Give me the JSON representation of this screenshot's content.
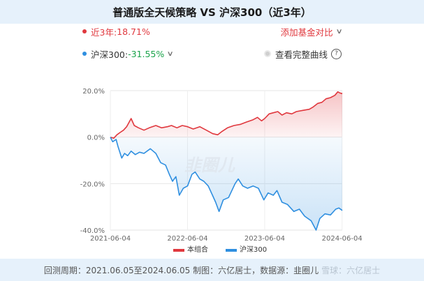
{
  "title": "普通版全天候策略 VS 沪深300（近3年）",
  "summary": {
    "portfolio_label": "近3年:",
    "portfolio_value": "18.71%",
    "index_label": "沪深300:",
    "index_value": "-31.55%",
    "compare_button": "添加基金对比",
    "full_curve_label": "查看完整曲线",
    "help_glyph": "?"
  },
  "colors": {
    "portfolio": "#e0383e",
    "index": "#2f8fe0",
    "positive": "#e0383e",
    "negative": "#1aa34a"
  },
  "watermark": "韭圈儿",
  "footer": {
    "text": "回测周期：2021.06.05至2024.06.05  制图：六亿居士，数据源：韭圈儿",
    "watermark": "雪球：六亿居士"
  },
  "chart_data": {
    "type": "line",
    "x_ticks": [
      "2021-06-04",
      "2022-06-04",
      "2023-06-04",
      "2024-06-04"
    ],
    "y_ticks": [
      "20.0%",
      "0.0%",
      "-20.0%",
      "-40.0%"
    ],
    "ylim": [
      -40,
      20
    ],
    "x_range": [
      "2021-06-04",
      "2024-06-05"
    ],
    "grid": true,
    "legend_position": "bottom",
    "series": [
      {
        "name": "本组合",
        "color": "#e0383e",
        "fill": "area-to-zero",
        "points": [
          [
            "2021-06-04",
            0.0
          ],
          [
            "2021-06-20",
            -0.5
          ],
          [
            "2021-07-05",
            1.0
          ],
          [
            "2021-07-20",
            2.0
          ],
          [
            "2021-08-05",
            3.0
          ],
          [
            "2021-08-20",
            4.5
          ],
          [
            "2021-09-10",
            8.0
          ],
          [
            "2021-09-25",
            5.0
          ],
          [
            "2021-10-15",
            4.0
          ],
          [
            "2021-11-10",
            3.0
          ],
          [
            "2021-12-05",
            4.0
          ],
          [
            "2022-01-05",
            5.0
          ],
          [
            "2022-02-01",
            4.0
          ],
          [
            "2022-03-01",
            4.5
          ],
          [
            "2022-03-20",
            5.0
          ],
          [
            "2022-04-15",
            4.0
          ],
          [
            "2022-05-10",
            5.0
          ],
          [
            "2022-06-04",
            4.5
          ],
          [
            "2022-07-01",
            3.5
          ],
          [
            "2022-08-01",
            4.5
          ],
          [
            "2022-09-01",
            3.0
          ],
          [
            "2022-10-01",
            1.5
          ],
          [
            "2022-10-25",
            1.0
          ],
          [
            "2022-11-15",
            2.5
          ],
          [
            "2022-12-10",
            4.0
          ],
          [
            "2023-01-10",
            5.0
          ],
          [
            "2023-02-10",
            5.5
          ],
          [
            "2023-03-10",
            6.5
          ],
          [
            "2023-04-10",
            7.5
          ],
          [
            "2023-05-01",
            8.5
          ],
          [
            "2023-05-20",
            7.0
          ],
          [
            "2023-06-04",
            8.0
          ],
          [
            "2023-06-25",
            10.0
          ],
          [
            "2023-07-15",
            10.5
          ],
          [
            "2023-08-05",
            11.0
          ],
          [
            "2023-08-25",
            9.5
          ],
          [
            "2023-09-15",
            10.5
          ],
          [
            "2023-10-10",
            10.0
          ],
          [
            "2023-11-01",
            11.0
          ],
          [
            "2023-12-01",
            11.5
          ],
          [
            "2024-01-01",
            12.0
          ],
          [
            "2024-01-20",
            13.0
          ],
          [
            "2024-02-10",
            14.5
          ],
          [
            "2024-03-01",
            15.0
          ],
          [
            "2024-03-20",
            16.5
          ],
          [
            "2024-04-10",
            17.0
          ],
          [
            "2024-05-01",
            18.0
          ],
          [
            "2024-05-15",
            19.5
          ],
          [
            "2024-05-25",
            19.0
          ],
          [
            "2024-06-05",
            18.71
          ]
        ]
      },
      {
        "name": "沪深300",
        "color": "#2f8fe0",
        "fill": "area-to-zero",
        "points": [
          [
            "2021-06-04",
            0.0
          ],
          [
            "2021-06-15",
            -2.0
          ],
          [
            "2021-07-01",
            -1.0
          ],
          [
            "2021-07-10",
            -4.0
          ],
          [
            "2021-07-28",
            -9.0
          ],
          [
            "2021-08-10",
            -7.0
          ],
          [
            "2021-08-25",
            -8.0
          ],
          [
            "2021-09-10",
            -6.0
          ],
          [
            "2021-09-30",
            -7.5
          ],
          [
            "2021-10-20",
            -6.5
          ],
          [
            "2021-11-10",
            -7.0
          ],
          [
            "2021-12-10",
            -5.0
          ],
          [
            "2022-01-05",
            -7.0
          ],
          [
            "2022-01-28",
            -11.0
          ],
          [
            "2022-02-20",
            -12.0
          ],
          [
            "2022-03-10",
            -16.0
          ],
          [
            "2022-03-25",
            -19.0
          ],
          [
            "2022-04-10",
            -17.0
          ],
          [
            "2022-04-26",
            -25.0
          ],
          [
            "2022-05-15",
            -22.0
          ],
          [
            "2022-06-04",
            -21.0
          ],
          [
            "2022-06-25",
            -16.0
          ],
          [
            "2022-07-10",
            -15.0
          ],
          [
            "2022-08-01",
            -18.0
          ],
          [
            "2022-08-20",
            -19.0
          ],
          [
            "2022-09-10",
            -21.0
          ],
          [
            "2022-09-30",
            -25.0
          ],
          [
            "2022-10-15",
            -28.0
          ],
          [
            "2022-10-31",
            -32.0
          ],
          [
            "2022-11-20",
            -27.0
          ],
          [
            "2022-12-15",
            -26.0
          ],
          [
            "2023-01-15",
            -20.0
          ],
          [
            "2023-01-30",
            -18.0
          ],
          [
            "2023-02-20",
            -21.0
          ],
          [
            "2023-03-15",
            -22.0
          ],
          [
            "2023-04-10",
            -21.0
          ],
          [
            "2023-05-05",
            -22.0
          ],
          [
            "2023-05-31",
            -27.0
          ],
          [
            "2023-06-20",
            -24.0
          ],
          [
            "2023-07-15",
            -25.0
          ],
          [
            "2023-08-01",
            -23.0
          ],
          [
            "2023-08-25",
            -28.0
          ],
          [
            "2023-09-20",
            -29.0
          ],
          [
            "2023-10-20",
            -32.0
          ],
          [
            "2023-11-15",
            -31.0
          ],
          [
            "2023-12-10",
            -34.0
          ],
          [
            "2024-01-10",
            -36.0
          ],
          [
            "2024-02-02",
            -40.0
          ],
          [
            "2024-02-20",
            -35.0
          ],
          [
            "2024-03-15",
            -33.0
          ],
          [
            "2024-04-10",
            -33.5
          ],
          [
            "2024-05-05",
            -31.0
          ],
          [
            "2024-05-20",
            -30.5
          ],
          [
            "2024-06-05",
            -31.55
          ]
        ]
      }
    ]
  }
}
